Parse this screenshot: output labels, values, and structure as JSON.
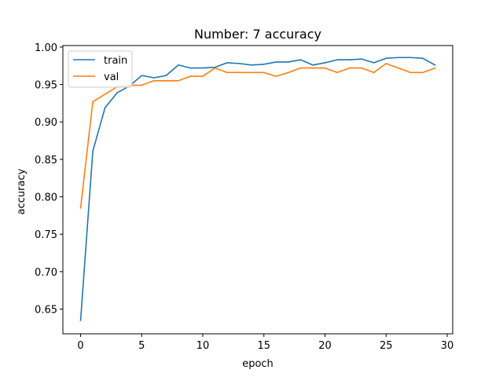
{
  "chart_data": {
    "type": "line",
    "title": "Number: 7 accuracy",
    "xlabel": "epoch",
    "ylabel": "accuracy",
    "xlim": [
      -1.45,
      30.45
    ],
    "ylim": [
      0.617,
      1.002
    ],
    "xticks": [
      0,
      5,
      10,
      15,
      20,
      25,
      30
    ],
    "yticks": [
      0.65,
      0.7,
      0.75,
      0.8,
      0.85,
      0.9,
      0.95,
      1.0
    ],
    "ytick_labels": [
      "0.65",
      "0.70",
      "0.75",
      "0.80",
      "0.85",
      "0.90",
      "0.95",
      "1.00"
    ],
    "grid": false,
    "legend_position": "upper-left",
    "x": [
      0,
      1,
      2,
      3,
      4,
      5,
      6,
      7,
      8,
      9,
      10,
      11,
      12,
      13,
      14,
      15,
      16,
      17,
      18,
      19,
      20,
      21,
      22,
      23,
      24,
      25,
      26,
      27,
      28,
      29
    ],
    "series": [
      {
        "name": "train",
        "color": "#1f77b4",
        "values": [
          0.635,
          0.861,
          0.919,
          0.939,
          0.948,
          0.962,
          0.959,
          0.962,
          0.976,
          0.972,
          0.972,
          0.973,
          0.979,
          0.978,
          0.976,
          0.977,
          0.98,
          0.98,
          0.983,
          0.976,
          0.979,
          0.983,
          0.983,
          0.984,
          0.979,
          0.985,
          0.986,
          0.986,
          0.985,
          0.976
        ]
      },
      {
        "name": "val",
        "color": "#ff7f0e",
        "values": [
          0.785,
          0.927,
          0.937,
          0.947,
          0.949,
          0.949,
          0.955,
          0.955,
          0.955,
          0.961,
          0.961,
          0.972,
          0.966,
          0.966,
          0.966,
          0.966,
          0.961,
          0.966,
          0.972,
          0.972,
          0.972,
          0.966,
          0.972,
          0.972,
          0.966,
          0.978,
          0.972,
          0.966,
          0.966,
          0.972
        ]
      }
    ]
  }
}
